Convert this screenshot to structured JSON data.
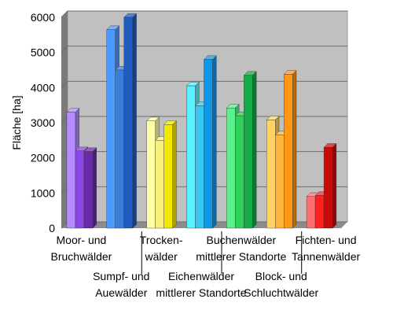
{
  "chart_data": {
    "type": "bar",
    "style": "3d-clustered",
    "ylabel": "Fläche [ha]",
    "ylim": [
      0,
      6000
    ],
    "yticks": [
      0,
      1000,
      2000,
      3000,
      4000,
      5000,
      6000
    ],
    "grid": true,
    "legend": "none",
    "background_color": "#c0c0c0",
    "categories": [
      [
        "Moor- und",
        "Bruchwälder"
      ],
      [
        "Sumpf- und",
        "Auewälder"
      ],
      [
        "Trocken-",
        "wälder"
      ],
      [
        "Eichenwälder",
        "mittlerer Standorte"
      ],
      [
        "Buchenwälder",
        "mittlerer Standorte"
      ],
      [
        "Block- und",
        "Schluchtwälder"
      ],
      [
        "Fichten- und",
        "Tannenwälder"
      ]
    ],
    "values": [
      [
        3300,
        2200,
        2180
      ],
      [
        5650,
        4500,
        6000
      ],
      [
        3050,
        2500,
        2950
      ],
      [
        4050,
        3480,
        4800
      ],
      [
        3420,
        3200,
        4350
      ],
      [
        3080,
        2650,
        4380
      ],
      [
        900,
        930,
        2300
      ]
    ],
    "colors": [
      [
        "#b48cff",
        "#8c46e6",
        "#6a2aa8"
      ],
      [
        "#4c9aff",
        "#3a7ed8",
        "#1e5cc0"
      ],
      [
        "#ffffa8",
        "#f6f07a",
        "#f2e800"
      ],
      [
        "#5af0ff",
        "#36c8f0",
        "#1496e6"
      ],
      [
        "#5af08c",
        "#2ed25a",
        "#14aa46"
      ],
      [
        "#ffd264",
        "#ffb43c",
        "#ff9614"
      ],
      [
        "#ff6e6e",
        "#ff2020",
        "#c80a0a"
      ]
    ]
  }
}
